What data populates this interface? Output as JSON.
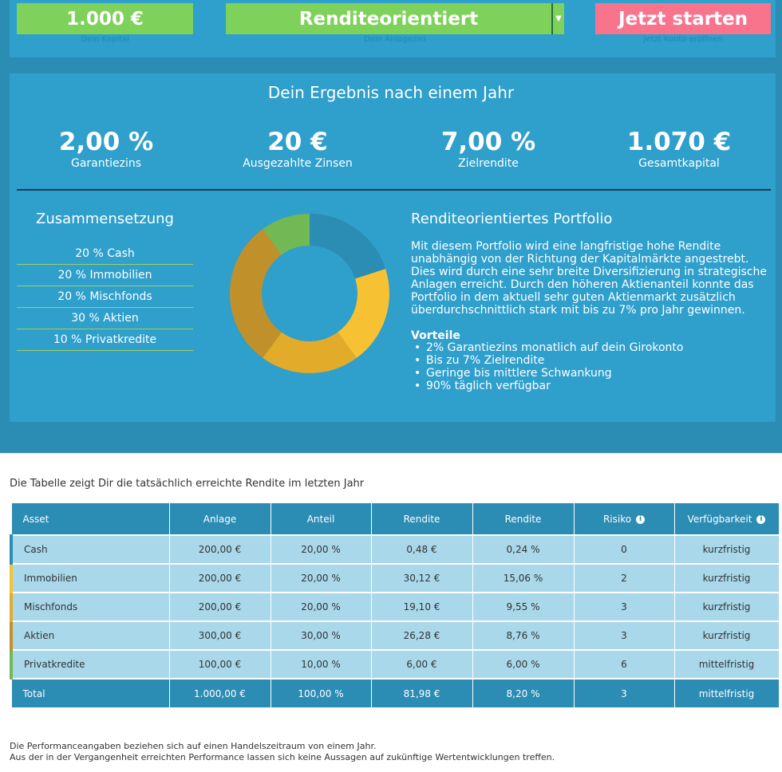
{
  "header": {
    "capital": {
      "value": "1.000 €",
      "label": "Dein Kapital"
    },
    "strategy": {
      "value": "Renditeorientiert",
      "label": "Dein Anlageziel"
    },
    "start": {
      "label": "Jetzt starten",
      "sublabel": "Jetzt Konto eröffnen"
    },
    "arrow_icon": "dropdown-arrow"
  },
  "result": {
    "title": "Dein Ergebnis nach einem Jahr",
    "kpis": [
      {
        "value": "2,00 %",
        "label": "Garantiezins"
      },
      {
        "value": "20 €",
        "label": "Ausgezahlte Zinsen"
      },
      {
        "value": "7,00 %",
        "label": "Zielrendite"
      },
      {
        "value": "1.070 €",
        "label": "Gesamtkapital"
      }
    ]
  },
  "composition": {
    "title": "Zusammensetzung",
    "items": [
      {
        "label": "20 % Cash",
        "share": 20,
        "color": "#2b8cb4"
      },
      {
        "label": "20 % Immobilien",
        "share": 20,
        "color": "#f6c234"
      },
      {
        "label": "20 % Mischfonds",
        "share": 20,
        "color": "#e2ab2a"
      },
      {
        "label": "30 % Aktien",
        "share": 30,
        "color": "#c0912a"
      },
      {
        "label": "10 % Privatkredite",
        "share": 10,
        "color": "#72b855"
      }
    ]
  },
  "portfolio": {
    "title": "Renditeorientiertes Portfolio",
    "text": "Mit diesem Portfolio wird eine langfristige hohe Rendite unabhängig von der Richtung der Kapitalmärkte angestrebt. Dies wird durch eine sehr breite Diversifizierung in strategische Anlagen erreicht. Durch den höheren Aktienanteil konnte das Portfolio in dem aktuell sehr guten Aktienmarkt zusätzlich überdurchschnittlich stark mit bis zu 7% pro Jahr gewinnen.",
    "advantages_title": "Vorteile",
    "advantages": [
      "2% Garantiezins monatlich auf dein Girokonto",
      "Bis zu 7% Zielrendite",
      "Geringe bis mittlere Schwankung",
      "90% täglich verfügbar"
    ]
  },
  "table": {
    "caption": "Die Tabelle zeigt Dir die tatsächlich erreichte Rendite im letzten Jahr",
    "headers": [
      "Asset",
      "Anlage",
      "Anteil",
      "Rendite",
      "Rendite",
      "Risiko",
      "Verfügbarkeit"
    ],
    "info_icon": "i",
    "rows": [
      {
        "cells": [
          "Cash",
          "200,00 €",
          "20,00 %",
          "0,48 €",
          "0,24 %",
          "0",
          "kurzfristig"
        ],
        "color": "#2b8cb4"
      },
      {
        "cells": [
          "Immobilien",
          "200,00 €",
          "20,00 %",
          "30,12 €",
          "15,06 %",
          "2",
          "kurzfristig"
        ],
        "color": "#f6c234"
      },
      {
        "cells": [
          "Mischfonds",
          "200,00 €",
          "20,00 %",
          "19,10 €",
          "9,55 %",
          "3",
          "kurzfristig"
        ],
        "color": "#e2ab2a"
      },
      {
        "cells": [
          "Aktien",
          "300,00 €",
          "30,00 %",
          "26,28 €",
          "8,76 %",
          "3",
          "kurzfristig"
        ],
        "color": "#c0912a"
      },
      {
        "cells": [
          "Privatkredite",
          "100,00 €",
          "10,00 %",
          "6,00 €",
          "6,00 %",
          "6",
          "mittelfristig"
        ],
        "color": "#72b855"
      }
    ],
    "total": [
      "Total",
      "1.000,00 €",
      "100,00 %",
      "81,98 €",
      "8,20 %",
      "3",
      "mittelfristig"
    ]
  },
  "footnote": [
    "Die Performanceangaben beziehen sich auf einen Handelszeitraum von einem Jahr.",
    "Aus der in der Vergangenheit erreichten Performance lassen sich keine Aussagen auf zukünftige Wertentwicklungen treffen."
  ]
}
